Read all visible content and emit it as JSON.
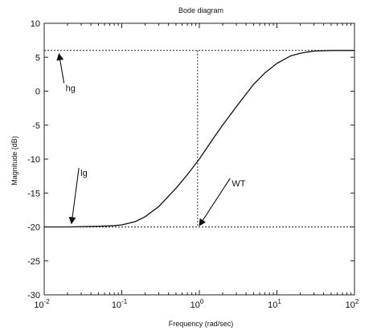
{
  "chart_data": {
    "type": "line",
    "title": "Bode diagram",
    "xlabel": "Frequency   (rad/sec)",
    "ylabel": "Magnitude (dB)",
    "x_scale": "log",
    "xlim": [
      0.01,
      100
    ],
    "ylim": [
      -30,
      10
    ],
    "x_ticks": [
      {
        "base": "10",
        "exp": "-2",
        "value": 0.01
      },
      {
        "base": "10",
        "exp": "-1",
        "value": 0.1
      },
      {
        "base": "10",
        "exp": "0",
        "value": 1
      },
      {
        "base": "10",
        "exp": "1",
        "value": 10
      },
      {
        "base": "10",
        "exp": "2",
        "value": 100
      }
    ],
    "y_ticks": [
      10,
      5,
      0,
      -5,
      -10,
      -15,
      -20,
      -25,
      -30
    ],
    "grid": false,
    "series": [
      {
        "x": [
          0.01,
          0.02,
          0.05,
          0.08,
          0.1,
          0.15,
          0.2,
          0.3,
          0.5,
          0.7,
          1,
          1.5,
          2,
          3,
          5,
          7,
          10,
          15,
          20,
          30,
          50,
          70,
          100
        ],
        "y": [
          -20,
          -20,
          -19.9,
          -19.8,
          -19.7,
          -19.2,
          -18.5,
          -17,
          -14.3,
          -12.3,
          -10,
          -7,
          -5,
          -2.3,
          1,
          2.7,
          4.1,
          5.2,
          5.6,
          5.9,
          6,
          6,
          6
        ]
      }
    ],
    "reference_lines": [
      {
        "kind": "horizontal",
        "y": 6,
        "style": "dotted"
      },
      {
        "kind": "horizontal",
        "y": -20,
        "style": "dotted"
      },
      {
        "kind": "vertical",
        "x": 0.95,
        "style": "dotted"
      }
    ],
    "annotations": [
      {
        "text": "hg",
        "label_x": 0.018,
        "label_y": 0,
        "arrow_to_x": 0.0155,
        "arrow_to_y": 5.5
      },
      {
        "text": "lg",
        "label_x": 0.028,
        "label_y": -12.5,
        "arrow_to_x": 0.0225,
        "arrow_to_y": -19.5
      },
      {
        "text": "WT",
        "label_x": 2.5,
        "label_y": -14,
        "arrow_to_x": 1.0,
        "arrow_to_y": -19.8
      }
    ]
  }
}
